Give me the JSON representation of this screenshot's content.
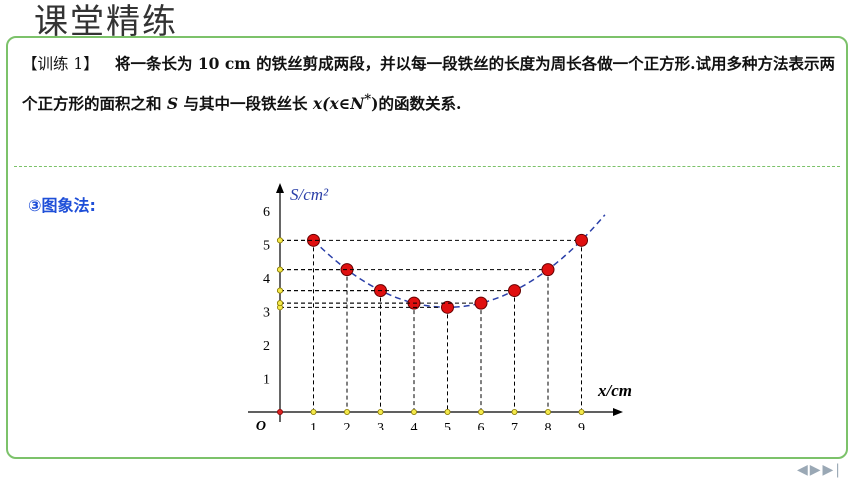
{
  "header": {
    "title": "课堂精练"
  },
  "problem": {
    "tag": "【训练 1】",
    "text_before": "将一条长为 10 cm 的铁丝剪成两段，并以每一段铁丝的长度为周长各做一个正方形.试用多种方法表示两个正方形的面积之和 ",
    "var_s": "S",
    "text_middle": " 与其中一段铁丝长 ",
    "var_x": "x(x∈N",
    "superscript": "*",
    "text_after": ")的函数关系."
  },
  "method_label": "③图象法:",
  "navigation": {
    "glyphs": "◀▶▶|"
  },
  "chart_data": {
    "type": "scatter",
    "ylabel": "S/cm²",
    "xlabel": "x/cm",
    "origin_label": "O",
    "x_ticks": [
      "1",
      "2",
      "3",
      "4",
      "5",
      "6",
      "7",
      "8",
      "9"
    ],
    "y_ticks": [
      "1",
      "2",
      "3",
      "4",
      "5",
      "6"
    ],
    "xlim": [
      0,
      9.5
    ],
    "ylim": [
      0,
      6
    ],
    "points": [
      {
        "x": 1,
        "y": 5.125
      },
      {
        "x": 2,
        "y": 4.25
      },
      {
        "x": 3,
        "y": 3.625
      },
      {
        "x": 4,
        "y": 3.25
      },
      {
        "x": 5,
        "y": 3.125
      },
      {
        "x": 6,
        "y": 3.25
      },
      {
        "x": 7,
        "y": 3.625
      },
      {
        "x": 8,
        "y": 4.25
      },
      {
        "x": 9,
        "y": 5.125
      }
    ],
    "curve": "S = x²/16 + (10−x)²/16",
    "point_color": "#e01010",
    "curve_color": "#2a3fa8"
  }
}
